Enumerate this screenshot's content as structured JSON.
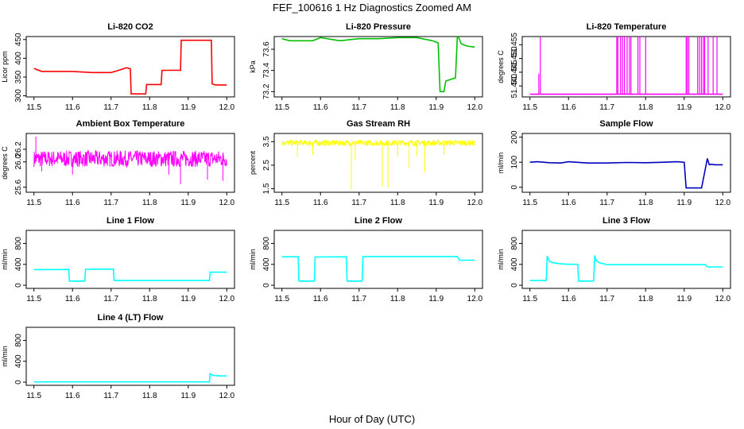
{
  "figure": {
    "title": "FEF_100616  1 Hz Diagnostics Zoomed AM",
    "xlabel": "Hour of Day (UTC)"
  },
  "chart_data": [
    {
      "type": "line",
      "title": "Li-820 CO2",
      "ylabel": "Licor ppm",
      "color": "#ff0000",
      "xlim": [
        11.48,
        12.02
      ],
      "ylim": [
        297,
        458
      ],
      "xticks": [
        "11.5",
        "11.6",
        "11.7",
        "11.8",
        "11.9",
        "12.0"
      ],
      "yticks": [
        "300",
        "350",
        "400",
        "450"
      ],
      "x": [
        11.5,
        11.52,
        11.6,
        11.65,
        11.7,
        11.72,
        11.74,
        11.75,
        11.752,
        11.79,
        11.792,
        11.83,
        11.832,
        11.88,
        11.882,
        11.96,
        11.962,
        11.97,
        12.0
      ],
      "y": [
        373,
        365,
        365,
        362,
        362,
        368,
        375,
        372,
        305,
        305,
        330,
        330,
        368,
        368,
        448,
        448,
        332,
        329,
        329
      ]
    },
    {
      "type": "line",
      "title": "Li-820 Pressure",
      "ylabel": "kPa",
      "color": "#00c000",
      "xlim": [
        11.48,
        12.02
      ],
      "ylim": [
        73.15,
        73.72
      ],
      "xticks": [
        "11.5",
        "11.6",
        "11.7",
        "11.8",
        "11.9",
        "12.0"
      ],
      "yticks": [
        "73.2",
        "73.4",
        "73.6"
      ],
      "x": [
        11.5,
        11.52,
        11.58,
        11.6,
        11.65,
        11.7,
        11.75,
        11.8,
        11.85,
        11.89,
        11.905,
        11.91,
        11.92,
        11.925,
        11.95,
        11.955,
        11.965,
        11.98,
        12.0
      ],
      "y": [
        73.7,
        73.68,
        73.68,
        73.71,
        73.68,
        73.7,
        73.7,
        73.71,
        73.71,
        73.68,
        73.66,
        73.2,
        73.2,
        73.3,
        73.33,
        73.74,
        73.65,
        73.63,
        73.62
      ]
    },
    {
      "type": "line",
      "title": "Li-820 Temperature",
      "ylabel": "degrees C",
      "color": "#ff00ff",
      "xlim": [
        11.48,
        12.02
      ],
      "ylim": [
        51.436,
        51.458
      ],
      "xticks": [
        "11.5",
        "11.6",
        "11.7",
        "11.8",
        "11.9",
        "12.0"
      ],
      "yticks": [
        "51.440",
        "51.445",
        "51.450",
        "51.455"
      ],
      "baseline": 51.437,
      "spikes": [
        [
          11.523,
          51.4445
        ],
        [
          11.527,
          51.458
        ],
        [
          11.725,
          51.458
        ],
        [
          11.728,
          51.458
        ],
        [
          11.735,
          51.458
        ],
        [
          11.74,
          51.458
        ],
        [
          11.745,
          51.458
        ],
        [
          11.752,
          51.458
        ],
        [
          11.758,
          51.458
        ],
        [
          11.762,
          51.458
        ],
        [
          11.78,
          51.458
        ],
        [
          11.785,
          51.458
        ],
        [
          11.8,
          51.458
        ],
        [
          11.905,
          51.458
        ],
        [
          11.908,
          51.458
        ],
        [
          11.912,
          51.458
        ],
        [
          11.935,
          51.458
        ],
        [
          11.94,
          51.458
        ],
        [
          11.945,
          51.458
        ],
        [
          11.95,
          51.458
        ],
        [
          11.953,
          51.458
        ],
        [
          11.962,
          51.458
        ],
        [
          11.975,
          51.458
        ],
        [
          11.985,
          51.458
        ]
      ]
    },
    {
      "type": "line",
      "title": "Ambient Box Temperature",
      "ylabel": "degrees C",
      "color": "#ff00ff",
      "xlim": [
        11.48,
        12.02
      ],
      "ylim": [
        25.52,
        26.45
      ],
      "xticks": [
        "11.5",
        "11.6",
        "11.7",
        "11.8",
        "11.9",
        "12.0"
      ],
      "yticks": [
        "25.6",
        "26.0",
        "26.2"
      ],
      "noise": {
        "center": 26.05,
        "spread": 0.13,
        "outliers": [
          [
            11.505,
            26.4
          ],
          [
            11.52,
            25.85
          ],
          [
            11.6,
            25.8
          ],
          [
            11.85,
            25.8
          ],
          [
            11.88,
            25.65
          ],
          [
            11.95,
            25.72
          ],
          [
            11.99,
            25.7
          ]
        ]
      }
    },
    {
      "type": "line",
      "title": "Gas Stream RH",
      "ylabel": "percent",
      "color": "#ffff00",
      "xlim": [
        11.48,
        12.02
      ],
      "ylim": [
        1.35,
        3.85
      ],
      "xticks": [
        "11.5",
        "11.6",
        "11.7",
        "11.8",
        "11.9",
        "12.0"
      ],
      "yticks": [
        "1.5",
        "2.5",
        "3.5"
      ],
      "noise": {
        "center": 3.45,
        "spread": 0.12,
        "outliers": [
          [
            11.54,
            2.85
          ],
          [
            11.58,
            2.95
          ],
          [
            11.68,
            1.45
          ],
          [
            11.69,
            2.7
          ],
          [
            11.76,
            1.6
          ],
          [
            11.775,
            1.55
          ],
          [
            11.8,
            2.9
          ],
          [
            11.83,
            2.4
          ],
          [
            11.85,
            2.9
          ],
          [
            11.87,
            2.2
          ],
          [
            11.92,
            2.95
          ]
        ]
      }
    },
    {
      "type": "line",
      "title": "Sample Flow",
      "ylabel": "ml/min",
      "color": "#0000c0",
      "xlim": [
        11.48,
        12.02
      ],
      "ylim": [
        -20,
        215
      ],
      "xticks": [
        "11.5",
        "11.6",
        "11.7",
        "11.8",
        "11.9",
        "12.0"
      ],
      "yticks": [
        "0",
        "100",
        "200"
      ],
      "x": [
        11.5,
        11.52,
        11.55,
        11.58,
        11.6,
        11.65,
        11.7,
        11.75,
        11.8,
        11.85,
        11.88,
        11.9,
        11.905,
        11.94,
        11.945,
        11.96,
        11.965,
        11.97,
        11.98,
        12.0
      ],
      "y": [
        100,
        102,
        98,
        97,
        102,
        97,
        97,
        99,
        98,
        100,
        102,
        100,
        -3,
        -3,
        -3,
        115,
        90,
        92,
        90,
        90
      ]
    },
    {
      "type": "line",
      "title": "Line 1 Flow",
      "ylabel": "ml/min",
      "color": "#00ffff",
      "xlim": [
        11.48,
        12.02
      ],
      "ylim": [
        -60,
        1050
      ],
      "xticks": [
        "11.5",
        "11.6",
        "11.7",
        "11.8",
        "11.9",
        "12.0"
      ],
      "yticks": [
        "0",
        "400",
        "800"
      ],
      "x": [
        11.5,
        11.57,
        11.59,
        11.592,
        11.632,
        11.634,
        11.706,
        11.708,
        11.955,
        11.957,
        12.0
      ],
      "y": [
        300,
        300,
        305,
        80,
        80,
        305,
        310,
        90,
        90,
        250,
        250
      ]
    },
    {
      "type": "line",
      "title": "Line 2 Flow",
      "ylabel": "ml/min",
      "color": "#00ffff",
      "xlim": [
        11.48,
        12.02
      ],
      "ylim": [
        -60,
        1050
      ],
      "xticks": [
        "11.5",
        "11.6",
        "11.7",
        "11.8",
        "11.9",
        "12.0"
      ],
      "yticks": [
        "0",
        "400",
        "800"
      ],
      "x": [
        11.5,
        11.542,
        11.544,
        11.584,
        11.586,
        11.667,
        11.669,
        11.708,
        11.71,
        11.93,
        11.955,
        11.96,
        12.0
      ],
      "y": [
        545,
        545,
        80,
        80,
        540,
        545,
        80,
        80,
        550,
        550,
        550,
        480,
        480
      ]
    },
    {
      "type": "line",
      "title": "Line 3 Flow",
      "ylabel": "ml/min",
      "color": "#00ffff",
      "xlim": [
        11.48,
        12.02
      ],
      "ylim": [
        -60,
        1050
      ],
      "xticks": [
        "11.5",
        "11.6",
        "11.7",
        "11.8",
        "11.9",
        "12.0"
      ],
      "yticks": [
        "0",
        "400",
        "800"
      ],
      "x": [
        11.5,
        11.542,
        11.545,
        11.55,
        11.56,
        11.58,
        11.6,
        11.624,
        11.626,
        11.665,
        11.668,
        11.672,
        11.68,
        11.7,
        11.8,
        11.9,
        11.955,
        11.96,
        12.0
      ],
      "y": [
        90,
        90,
        560,
        460,
        430,
        410,
        400,
        400,
        80,
        80,
        570,
        470,
        430,
        395,
        395,
        395,
        395,
        350,
        350
      ]
    },
    {
      "type": "line",
      "title": "Line 4 (LT) Flow",
      "ylabel": "ml/min",
      "color": "#00ffff",
      "xlim": [
        11.48,
        12.02
      ],
      "ylim": [
        -60,
        1050
      ],
      "xticks": [
        "11.5",
        "11.6",
        "11.7",
        "11.8",
        "11.9",
        "12.0"
      ],
      "yticks": [
        "0",
        "400",
        "800"
      ],
      "x": [
        11.5,
        11.6,
        11.7,
        11.8,
        11.9,
        11.955,
        11.957,
        11.965,
        11.98,
        12.0
      ],
      "y": [
        5,
        5,
        5,
        5,
        5,
        5,
        160,
        130,
        120,
        120
      ]
    }
  ]
}
